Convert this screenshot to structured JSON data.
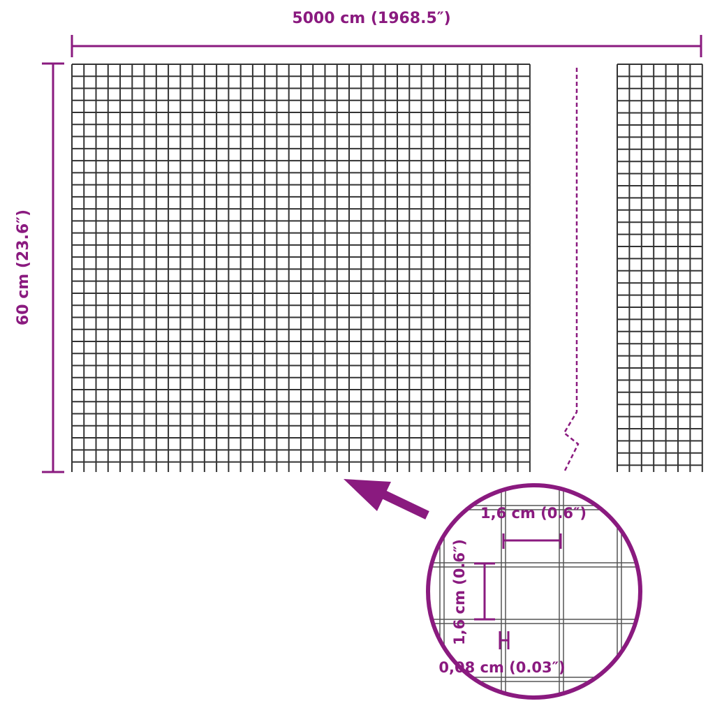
{
  "colors": {
    "accent": "#8a1a7f",
    "mesh": "#333333"
  },
  "dimensions": {
    "width_label": "5000 cm (1968.5″)",
    "height_label": "60 cm (23.6″)"
  },
  "detail": {
    "mesh_width_label": "1,6 cm (0.6″)",
    "mesh_height_label": "1,6 cm (0.6″)",
    "wire_thickness_label": "0,08 cm (0.03″)"
  },
  "icons": {
    "pointer": "arrow-icon",
    "break": "roll-break-line"
  }
}
